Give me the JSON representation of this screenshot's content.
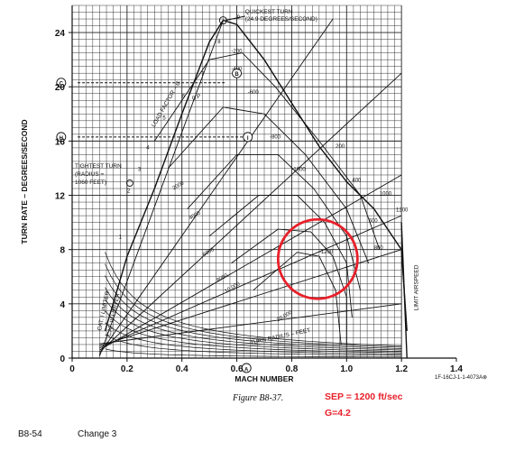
{
  "chart_data": {
    "type": "line",
    "title": "",
    "xlabel": "MACH NUMBER",
    "ylabel": "TURN RATE – DEGREES/SECOND",
    "xlim": [
      0,
      1.4
    ],
    "ylim": [
      0,
      26
    ],
    "x_ticks": [
      "0",
      "0.2",
      "0.4",
      "0.6",
      "0.8",
      "1.0",
      "1.2",
      "1.4"
    ],
    "y_ticks": [
      "0",
      "4",
      "8",
      "12",
      "16",
      "20",
      "24"
    ],
    "grid": true,
    "x_point_labels": {
      "mach_point_A": "A"
    },
    "y_point_labels": {
      "C": "C",
      "H": "H"
    },
    "point_markers": [
      "B",
      "I"
    ],
    "reference_lines": [
      {
        "label": "C",
        "y": 20.3,
        "x_end": 0.56
      },
      {
        "label": "H",
        "y": 16.3,
        "x_end": 0.64
      }
    ],
    "series": [
      {
        "name": "boundary",
        "x": [
          0.12,
          0.2,
          0.3,
          0.4,
          0.5,
          0.55,
          0.6,
          0.7,
          0.8,
          0.9,
          1.0,
          1.1,
          1.2,
          1.22
        ],
        "y": [
          2.0,
          7.5,
          12.5,
          18.0,
          23.3,
          24.9,
          24.6,
          22.0,
          18.8,
          15.6,
          13.0,
          11.0,
          8.0,
          2.0
        ]
      },
      {
        "name": "limit_airspeed",
        "x": [
          1.2,
          1.22
        ],
        "y": [
          10,
          0
        ]
      }
    ],
    "annotations": {
      "quickest_turn": [
        "QUICKEST TURN",
        "(24.9 DEGREES/SECOND)"
      ],
      "tightest_turn": [
        "TIGHTEST TURN",
        "(RADIUS =",
        "1060 FEET)"
      ],
      "load_factor": "LOAD FACTOR – G",
      "turn_radius": "TURN RADIUS – FEET",
      "cat1_limiter": "CAT. I LIMITER",
      "cat3_limiter": "CAT. III LIMITER",
      "limit_airspeed": "LIMIT AIRSPEED",
      "ps_label": "0 P",
      "ref_code": "1F-16CJ-1-1-4073A⊗"
    },
    "curve_labels": {
      "g_values": [
        "1",
        "2",
        "3",
        "4",
        "5",
        "6",
        "7",
        "8",
        "9"
      ],
      "radius_values": [
        "2000",
        "4000",
        "6000",
        "8000",
        "10,000",
        "20,000"
      ],
      "ps_values": [
        "-200",
        "-400",
        "-600",
        "-800",
        "-1000",
        "-1200",
        "200",
        "400",
        "600",
        "800",
        "1000",
        "1200"
      ]
    }
  },
  "figure_caption": "Figure B8-37.",
  "notes": {
    "line1": "SEP = 1200 ft/sec",
    "line2": "G=4.2"
  },
  "footer": {
    "page": "B8-54",
    "change": "Change 3"
  },
  "colors": {
    "ink": "#111111",
    "grid": "#222222",
    "highlight": "#e8202a"
  }
}
